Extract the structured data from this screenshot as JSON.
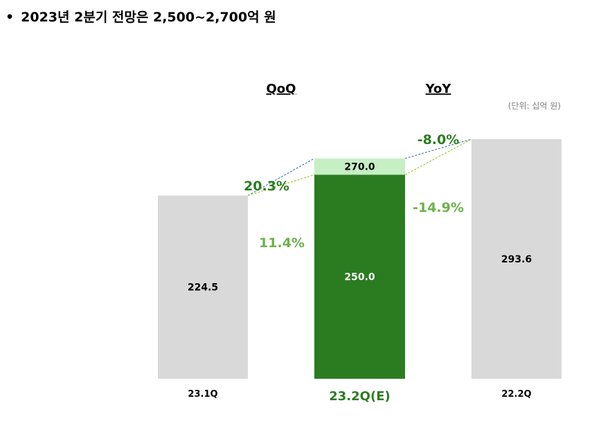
{
  "headline": {
    "bullet": "•",
    "text": "2023년 2분기 전망은 2,500~2,700억 원"
  },
  "unit_label": "(단위: 십억 원)",
  "colors": {
    "gray_bar": "#d9d9d9",
    "dark_green": "#2b7c21",
    "light_green": "#c6efc4",
    "pct_dark": "#2b7c21",
    "pct_light": "#6bb24a",
    "connector_blue": "#4a78b8",
    "connector_green": "#9acd32"
  },
  "chart_data": {
    "type": "bar",
    "title": "",
    "xlabel": "",
    "ylabel": "",
    "ylim": [
      0,
      293.6
    ],
    "categories": [
      "23.1Q",
      "23.2Q(E)",
      "22.2Q"
    ],
    "bars": [
      {
        "category": "23.1Q",
        "value": 224.5,
        "label": "224.5"
      },
      {
        "category": "23.2Q(E)",
        "low": 250.0,
        "high": 270.0,
        "low_label": "250.0",
        "high_label": "270.0"
      },
      {
        "category": "22.2Q",
        "value": 293.6,
        "label": "293.6"
      }
    ],
    "group_headers": {
      "qoq": "QoQ",
      "yoy": "YoY"
    },
    "annotations": {
      "qoq_high": "20.3%",
      "qoq_low": "11.4%",
      "yoy_high": "-8.0%",
      "yoy_low": "-14.9%"
    }
  }
}
